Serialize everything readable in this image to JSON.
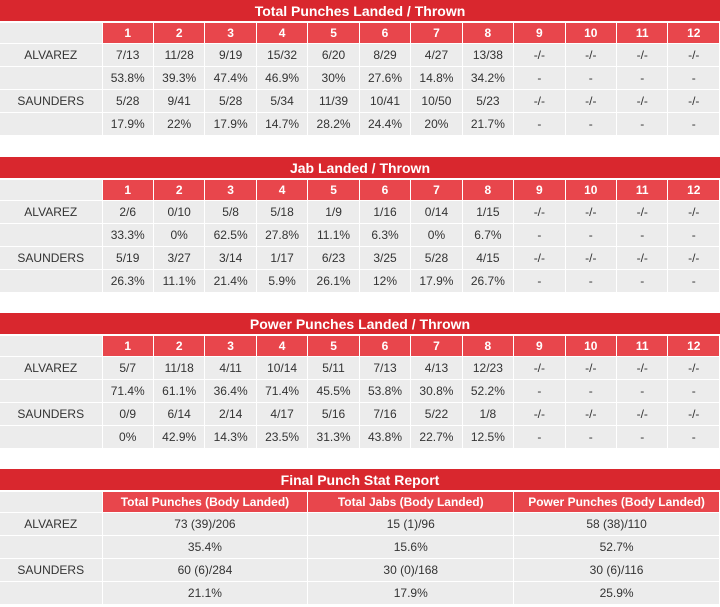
{
  "round_tables": [
    {
      "title": "Total Punches Landed / Thrown",
      "rounds": [
        "1",
        "2",
        "3",
        "4",
        "5",
        "6",
        "7",
        "8",
        "9",
        "10",
        "11",
        "12"
      ],
      "fighters": [
        {
          "name": "ALVAREZ",
          "landed": [
            "7/13",
            "11/28",
            "9/19",
            "15/32",
            "6/20",
            "8/29",
            "4/27",
            "13/38",
            "-/-",
            "-/-",
            "-/-",
            "-/-"
          ],
          "pct": [
            "53.8%",
            "39.3%",
            "47.4%",
            "46.9%",
            "30%",
            "27.6%",
            "14.8%",
            "34.2%",
            "-",
            "-",
            "-",
            "-"
          ]
        },
        {
          "name": "SAUNDERS",
          "landed": [
            "5/28",
            "9/41",
            "5/28",
            "5/34",
            "11/39",
            "10/41",
            "10/50",
            "5/23",
            "-/-",
            "-/-",
            "-/-",
            "-/-"
          ],
          "pct": [
            "17.9%",
            "22%",
            "17.9%",
            "14.7%",
            "28.2%",
            "24.4%",
            "20%",
            "21.7%",
            "-",
            "-",
            "-",
            "-"
          ]
        }
      ]
    },
    {
      "title": "Jab Landed / Thrown",
      "rounds": [
        "1",
        "2",
        "3",
        "4",
        "5",
        "6",
        "7",
        "8",
        "9",
        "10",
        "11",
        "12"
      ],
      "fighters": [
        {
          "name": "ALVAREZ",
          "landed": [
            "2/6",
            "0/10",
            "5/8",
            "5/18",
            "1/9",
            "1/16",
            "0/14",
            "1/15",
            "-/-",
            "-/-",
            "-/-",
            "-/-"
          ],
          "pct": [
            "33.3%",
            "0%",
            "62.5%",
            "27.8%",
            "11.1%",
            "6.3%",
            "0%",
            "6.7%",
            "-",
            "-",
            "-",
            "-"
          ]
        },
        {
          "name": "SAUNDERS",
          "landed": [
            "5/19",
            "3/27",
            "3/14",
            "1/17",
            "6/23",
            "3/25",
            "5/28",
            "4/15",
            "-/-",
            "-/-",
            "-/-",
            "-/-"
          ],
          "pct": [
            "26.3%",
            "11.1%",
            "21.4%",
            "5.9%",
            "26.1%",
            "12%",
            "17.9%",
            "26.7%",
            "-",
            "-",
            "-",
            "-"
          ]
        }
      ]
    },
    {
      "title": "Power Punches Landed / Thrown",
      "rounds": [
        "1",
        "2",
        "3",
        "4",
        "5",
        "6",
        "7",
        "8",
        "9",
        "10",
        "11",
        "12"
      ],
      "fighters": [
        {
          "name": "ALVAREZ",
          "landed": [
            "5/7",
            "11/18",
            "4/11",
            "10/14",
            "5/11",
            "7/13",
            "4/13",
            "12/23",
            "-/-",
            "-/-",
            "-/-",
            "-/-"
          ],
          "pct": [
            "71.4%",
            "61.1%",
            "36.4%",
            "71.4%",
            "45.5%",
            "53.8%",
            "30.8%",
            "52.2%",
            "-",
            "-",
            "-",
            "-"
          ]
        },
        {
          "name": "SAUNDERS",
          "landed": [
            "0/9",
            "6/14",
            "2/14",
            "4/17",
            "5/16",
            "7/16",
            "5/22",
            "1/8",
            "-/-",
            "-/-",
            "-/-",
            "-/-"
          ],
          "pct": [
            "0%",
            "42.9%",
            "14.3%",
            "23.5%",
            "31.3%",
            "43.8%",
            "22.7%",
            "12.5%",
            "-",
            "-",
            "-",
            "-"
          ]
        }
      ]
    }
  ],
  "final": {
    "title": "Final Punch Stat Report",
    "headers": [
      "Total Punches (Body Landed)",
      "Total Jabs (Body Landed)",
      "Power Punches (Body Landed)"
    ],
    "fighters": [
      {
        "name": "ALVAREZ",
        "values": [
          "73 (39)/206",
          "15 (1)/96",
          "58 (38)/110"
        ],
        "pct": [
          "35.4%",
          "15.6%",
          "52.7%"
        ]
      },
      {
        "name": "SAUNDERS",
        "values": [
          "60 (6)/284",
          "30 (0)/168",
          "30 (6)/116"
        ],
        "pct": [
          "21.1%",
          "17.9%",
          "25.9%"
        ]
      }
    ]
  },
  "colors": {
    "title_bg": "#d9272e",
    "header_bg": "#e8464c",
    "cell_bg": "#ececec"
  }
}
